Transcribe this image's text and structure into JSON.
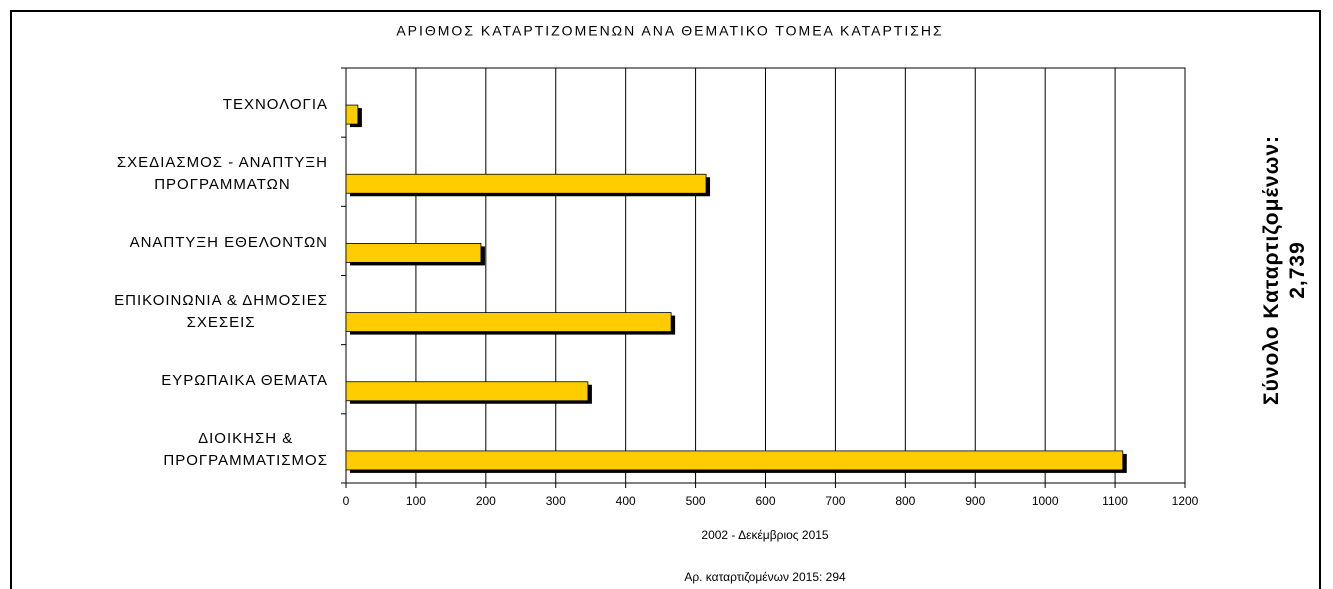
{
  "chart_data": {
    "type": "bar",
    "orientation": "horizontal",
    "title": "ΑΡΙΘΜΟΣ ΚΑΤΑΡΤΙΖΟΜΕΝΩΝ ΑΝΑ ΘΕΜΑΤΙΚΟ ΤΟΜΕΑ ΚΑΤΑΡΤΙΣΗΣ",
    "x_label": "2002 - Δεκέμβριος 2015",
    "annotations": [
      "Αρ. καταρτιζομένων 2015: 294",
      "Σύνολο Καταρτιζομένων:\n2,739"
    ],
    "categories": [
      "ΤΕΧΝΟΛΟΓΙΑ",
      "ΣΧΕΔΙΑΣΜΟΣ - ΑΝΑΠΤΥΞΗ\nΠΡΟΓΡΑΜΜΑΤΩΝ",
      "ΑΝΑΠΤΥΞΗ ΕΘΕΛΟΝΤΩΝ",
      "ΕΠΙΚΟΙΝΩΝΙΑ & ΔΗΜΟΣΙΕΣ\nΣΧΕΣΕΙΣ",
      "ΕΥΡΩΠΑΙΚΑ ΘΕΜΑΤΑ",
      "ΔΙΟΙΚΗΣΗ &\nΠΡΟΓΡΑΜΜΑΤΙΣΜΟΣ"
    ],
    "values": [
      17,
      515,
      193,
      465,
      346,
      1111
    ],
    "color": "#ffcc00",
    "shadow_color": "#000000",
    "xlim": [
      0,
      1200
    ],
    "xticks": [
      0,
      100,
      200,
      300,
      400,
      500,
      600,
      700,
      800,
      900,
      1000,
      1100,
      1200
    ],
    "grid": true
  }
}
